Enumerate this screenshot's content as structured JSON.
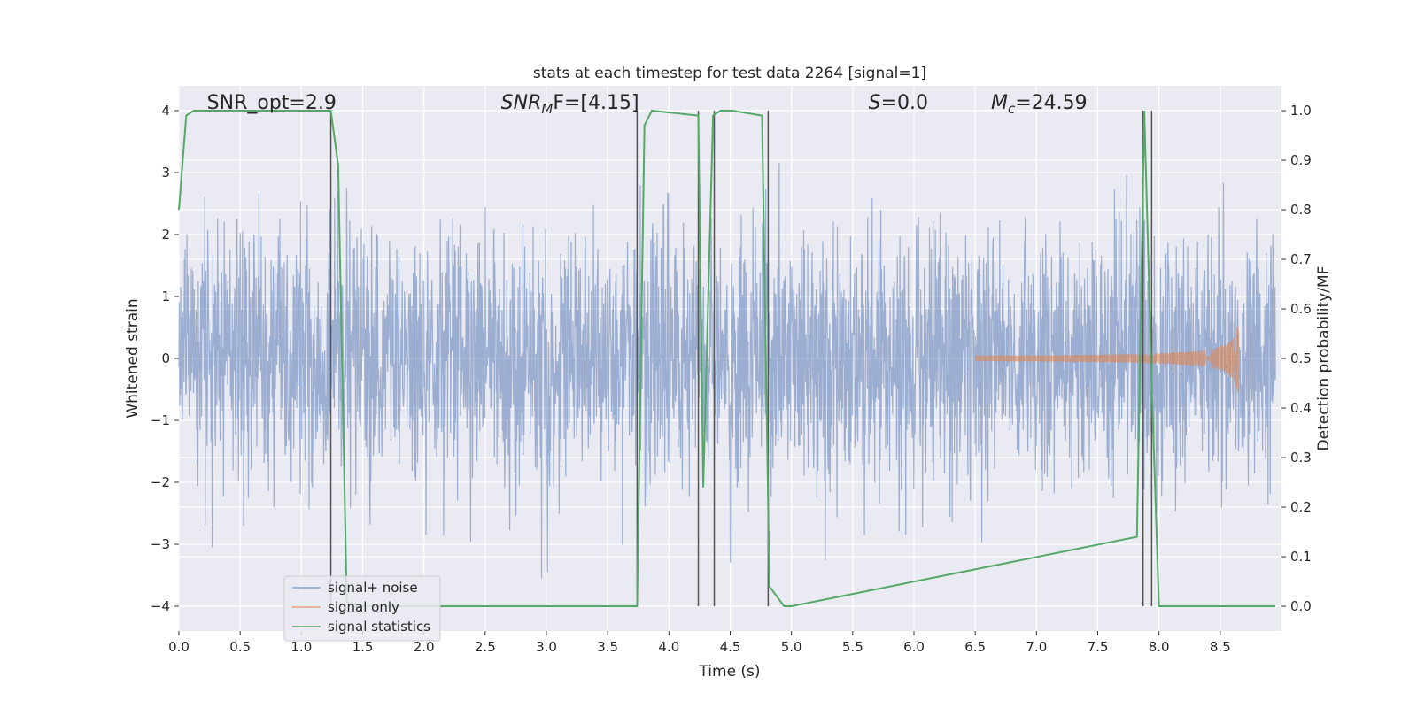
{
  "chart_data": {
    "type": "line",
    "title": "stats at each timestep for test data 2264 [signal=1]",
    "xlabel": "Time (s)",
    "ylabel_left": "Whitened strain",
    "ylabel_right": "Detection probability/MF",
    "xlim": [
      0.0,
      9.0
    ],
    "ylim_left": [
      -4.4,
      4.4
    ],
    "ylim_right": [
      -0.05,
      1.05
    ],
    "x_ticks": [
      "0.0",
      "0.5",
      "1.0",
      "1.5",
      "2.0",
      "2.5",
      "3.0",
      "3.5",
      "4.0",
      "4.5",
      "5.0",
      "5.5",
      "6.0",
      "6.5",
      "7.0",
      "7.5",
      "8.0",
      "8.5"
    ],
    "y_left_ticks": [
      "−4",
      "−3",
      "−2",
      "−1",
      "0",
      "1",
      "2",
      "3",
      "4"
    ],
    "y_right_ticks": [
      "0.0",
      "0.1",
      "0.2",
      "0.3",
      "0.4",
      "0.5",
      "0.6",
      "0.7",
      "0.8",
      "0.9",
      "1.0"
    ],
    "grid": true,
    "legend_placement": "lower-left",
    "annotations": [
      {
        "text": "SNR_opt=2.9",
        "x": 0.2
      },
      {
        "text": "SNR_MF=[4.15]",
        "base": "SNR",
        "sub": "M",
        "rest": "F=[4.15]",
        "x": 2.6
      },
      {
        "text": "S=0.0",
        "base": "S",
        "rest": "=0.0",
        "x": 5.6
      },
      {
        "text": "M_c=24.59",
        "base": "M",
        "sub": "c",
        "rest": "=24.59",
        "x": 6.6
      }
    ],
    "series": [
      {
        "name": "signal+ noise",
        "color": "#4c72b0",
        "description_note": "noise band roughly within ±2.5 with spikes to ±4",
        "noise_sigma": 1.0
      },
      {
        "name": "signal only",
        "color": "#dd8452",
        "chirp_start": 6.5,
        "chirp_end": 8.65,
        "peak_amplitude": 0.7
      },
      {
        "name": "signal statistics",
        "color": "#55a868",
        "axis": "right",
        "x": [
          0.0,
          0.06,
          0.12,
          1.24,
          1.3,
          1.37,
          1.43,
          3.74,
          3.8,
          3.86,
          4.24,
          4.28,
          4.36,
          4.42,
          4.52,
          4.76,
          4.82,
          4.94,
          5.0,
          7.82,
          7.88,
          7.94,
          8.0,
          8.06,
          8.95
        ],
        "y": [
          0.8,
          0.99,
          1.0,
          1.0,
          0.89,
          0.01,
          0.0,
          0.0,
          0.97,
          1.0,
          0.99,
          0.24,
          0.99,
          1.0,
          1.0,
          0.99,
          0.04,
          0.0,
          0.0,
          0.14,
          1.0,
          0.45,
          0.0,
          0.0,
          0.0
        ]
      }
    ],
    "vertical_lines": [
      1.24,
      3.74,
      4.24,
      4.37,
      4.81,
      7.87,
      7.94
    ]
  }
}
